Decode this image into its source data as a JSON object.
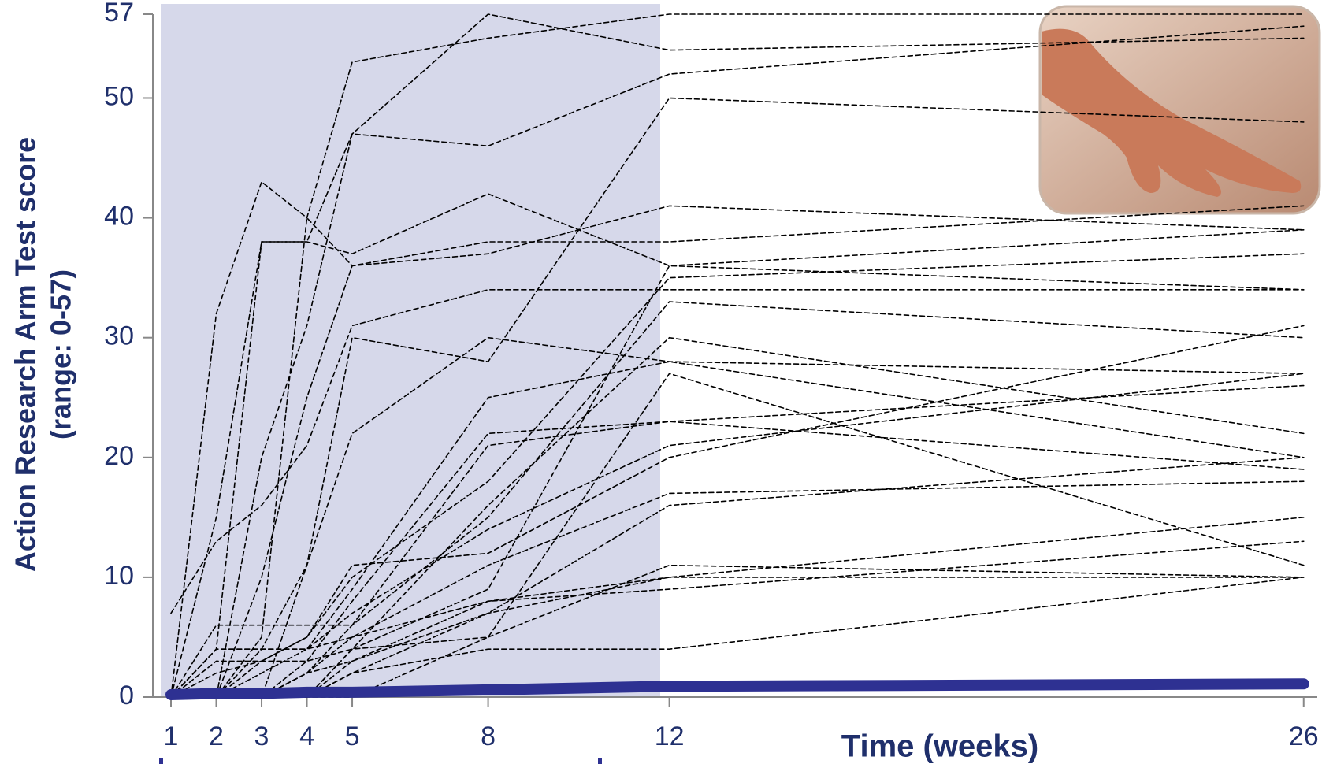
{
  "chart_data": {
    "type": "line",
    "y_label": [
      "Action Research Arm Test score",
      "(range: 0-57)"
    ],
    "x_label": "Time (weeks)",
    "x": [
      1,
      2,
      3,
      4,
      5,
      8,
      12,
      26
    ],
    "xlim": [
      0.6,
      26.3
    ],
    "xticks": [
      1,
      2,
      3,
      4,
      5,
      8,
      12,
      26
    ],
    "ylim": [
      0,
      57
    ],
    "yticks": [
      0,
      10,
      20,
      30,
      40,
      50,
      57
    ],
    "dashed": true,
    "series": [
      {
        "color": "#000000",
        "values": [
          0,
          32,
          43,
          40,
          53,
          55,
          57,
          57
        ]
      },
      {
        "color": "#000000",
        "values": [
          0,
          15,
          38,
          38,
          47,
          46,
          52,
          56
        ]
      },
      {
        "color": "#000000",
        "values": [
          0,
          4,
          38,
          38,
          37,
          42,
          36,
          34
        ]
      },
      {
        "color": "#000000",
        "values": [
          0,
          0,
          20,
          31,
          47,
          57,
          54,
          55
        ]
      },
      {
        "color": "#000000",
        "values": [
          0,
          0,
          10,
          25,
          36,
          38,
          38,
          41
        ]
      },
      {
        "color": "#000000",
        "values": [
          0,
          0,
          5,
          40,
          36,
          37,
          41,
          39
        ]
      },
      {
        "color": "#000000",
        "values": [
          0,
          0,
          0,
          11,
          22,
          30,
          28,
          27
        ]
      },
      {
        "color": "#000000",
        "values": [
          0,
          6,
          6,
          6,
          6,
          21,
          23,
          26
        ]
      },
      {
        "color": "#000000",
        "values": [
          0,
          4,
          4,
          4,
          9,
          25,
          28,
          20
        ]
      },
      {
        "color": "#000000",
        "values": [
          0,
          3,
          3,
          3,
          4,
          9,
          36,
          39
        ]
      },
      {
        "color": "#000000",
        "values": [
          0,
          0,
          0,
          3,
          8,
          22,
          23,
          19
        ]
      },
      {
        "color": "#000000",
        "values": [
          0,
          0,
          3,
          5,
          10,
          18,
          35,
          37
        ]
      },
      {
        "color": "#000000",
        "values": [
          0,
          0,
          0,
          0,
          4,
          16,
          30,
          22
        ]
      },
      {
        "color": "#000000",
        "values": [
          0,
          2,
          3,
          5,
          11,
          12,
          20,
          31
        ]
      },
      {
        "color": "#000000",
        "values": [
          0,
          0,
          2,
          4,
          5,
          11,
          17,
          18
        ]
      },
      {
        "color": "#000000",
        "values": [
          0,
          0,
          0,
          2,
          5,
          8,
          10,
          10
        ]
      },
      {
        "color": "#000000",
        "values": [
          0,
          0,
          0,
          2,
          3,
          7,
          10,
          15
        ]
      },
      {
        "color": "#000000",
        "values": [
          0,
          0,
          0,
          0,
          2,
          4,
          4,
          10
        ]
      },
      {
        "color": "#000000",
        "values": [
          0,
          0,
          0,
          0,
          4,
          5,
          11,
          10
        ]
      },
      {
        "color": "#000000",
        "values": [
          0,
          0,
          0,
          0,
          3,
          8,
          9,
          13
        ]
      },
      {
        "color": "#000000",
        "values": [
          0,
          0,
          0,
          0,
          2,
          7,
          16,
          20
        ]
      },
      {
        "color": "#000000",
        "values": [
          0,
          0,
          0,
          0,
          0,
          5,
          27,
          11
        ]
      },
      {
        "color": "#000000",
        "values": [
          0,
          4,
          4,
          4,
          7,
          14,
          21,
          27
        ]
      },
      {
        "color": "#000000",
        "values": [
          0,
          0,
          0,
          2,
          6,
          15,
          33,
          30
        ]
      },
      {
        "color": "#000000",
        "values": [
          7,
          13,
          16,
          21,
          31,
          34,
          34,
          34
        ]
      },
      {
        "color": "#000000",
        "values": [
          0,
          0,
          4,
          11,
          30,
          28,
          50,
          48
        ]
      },
      {
        "color": "#2e3192",
        "values": [
          0.2,
          0.3,
          0.3,
          0.4,
          0.4,
          0.6,
          0.9,
          1.1
        ],
        "width": 14
      }
    ]
  }
}
